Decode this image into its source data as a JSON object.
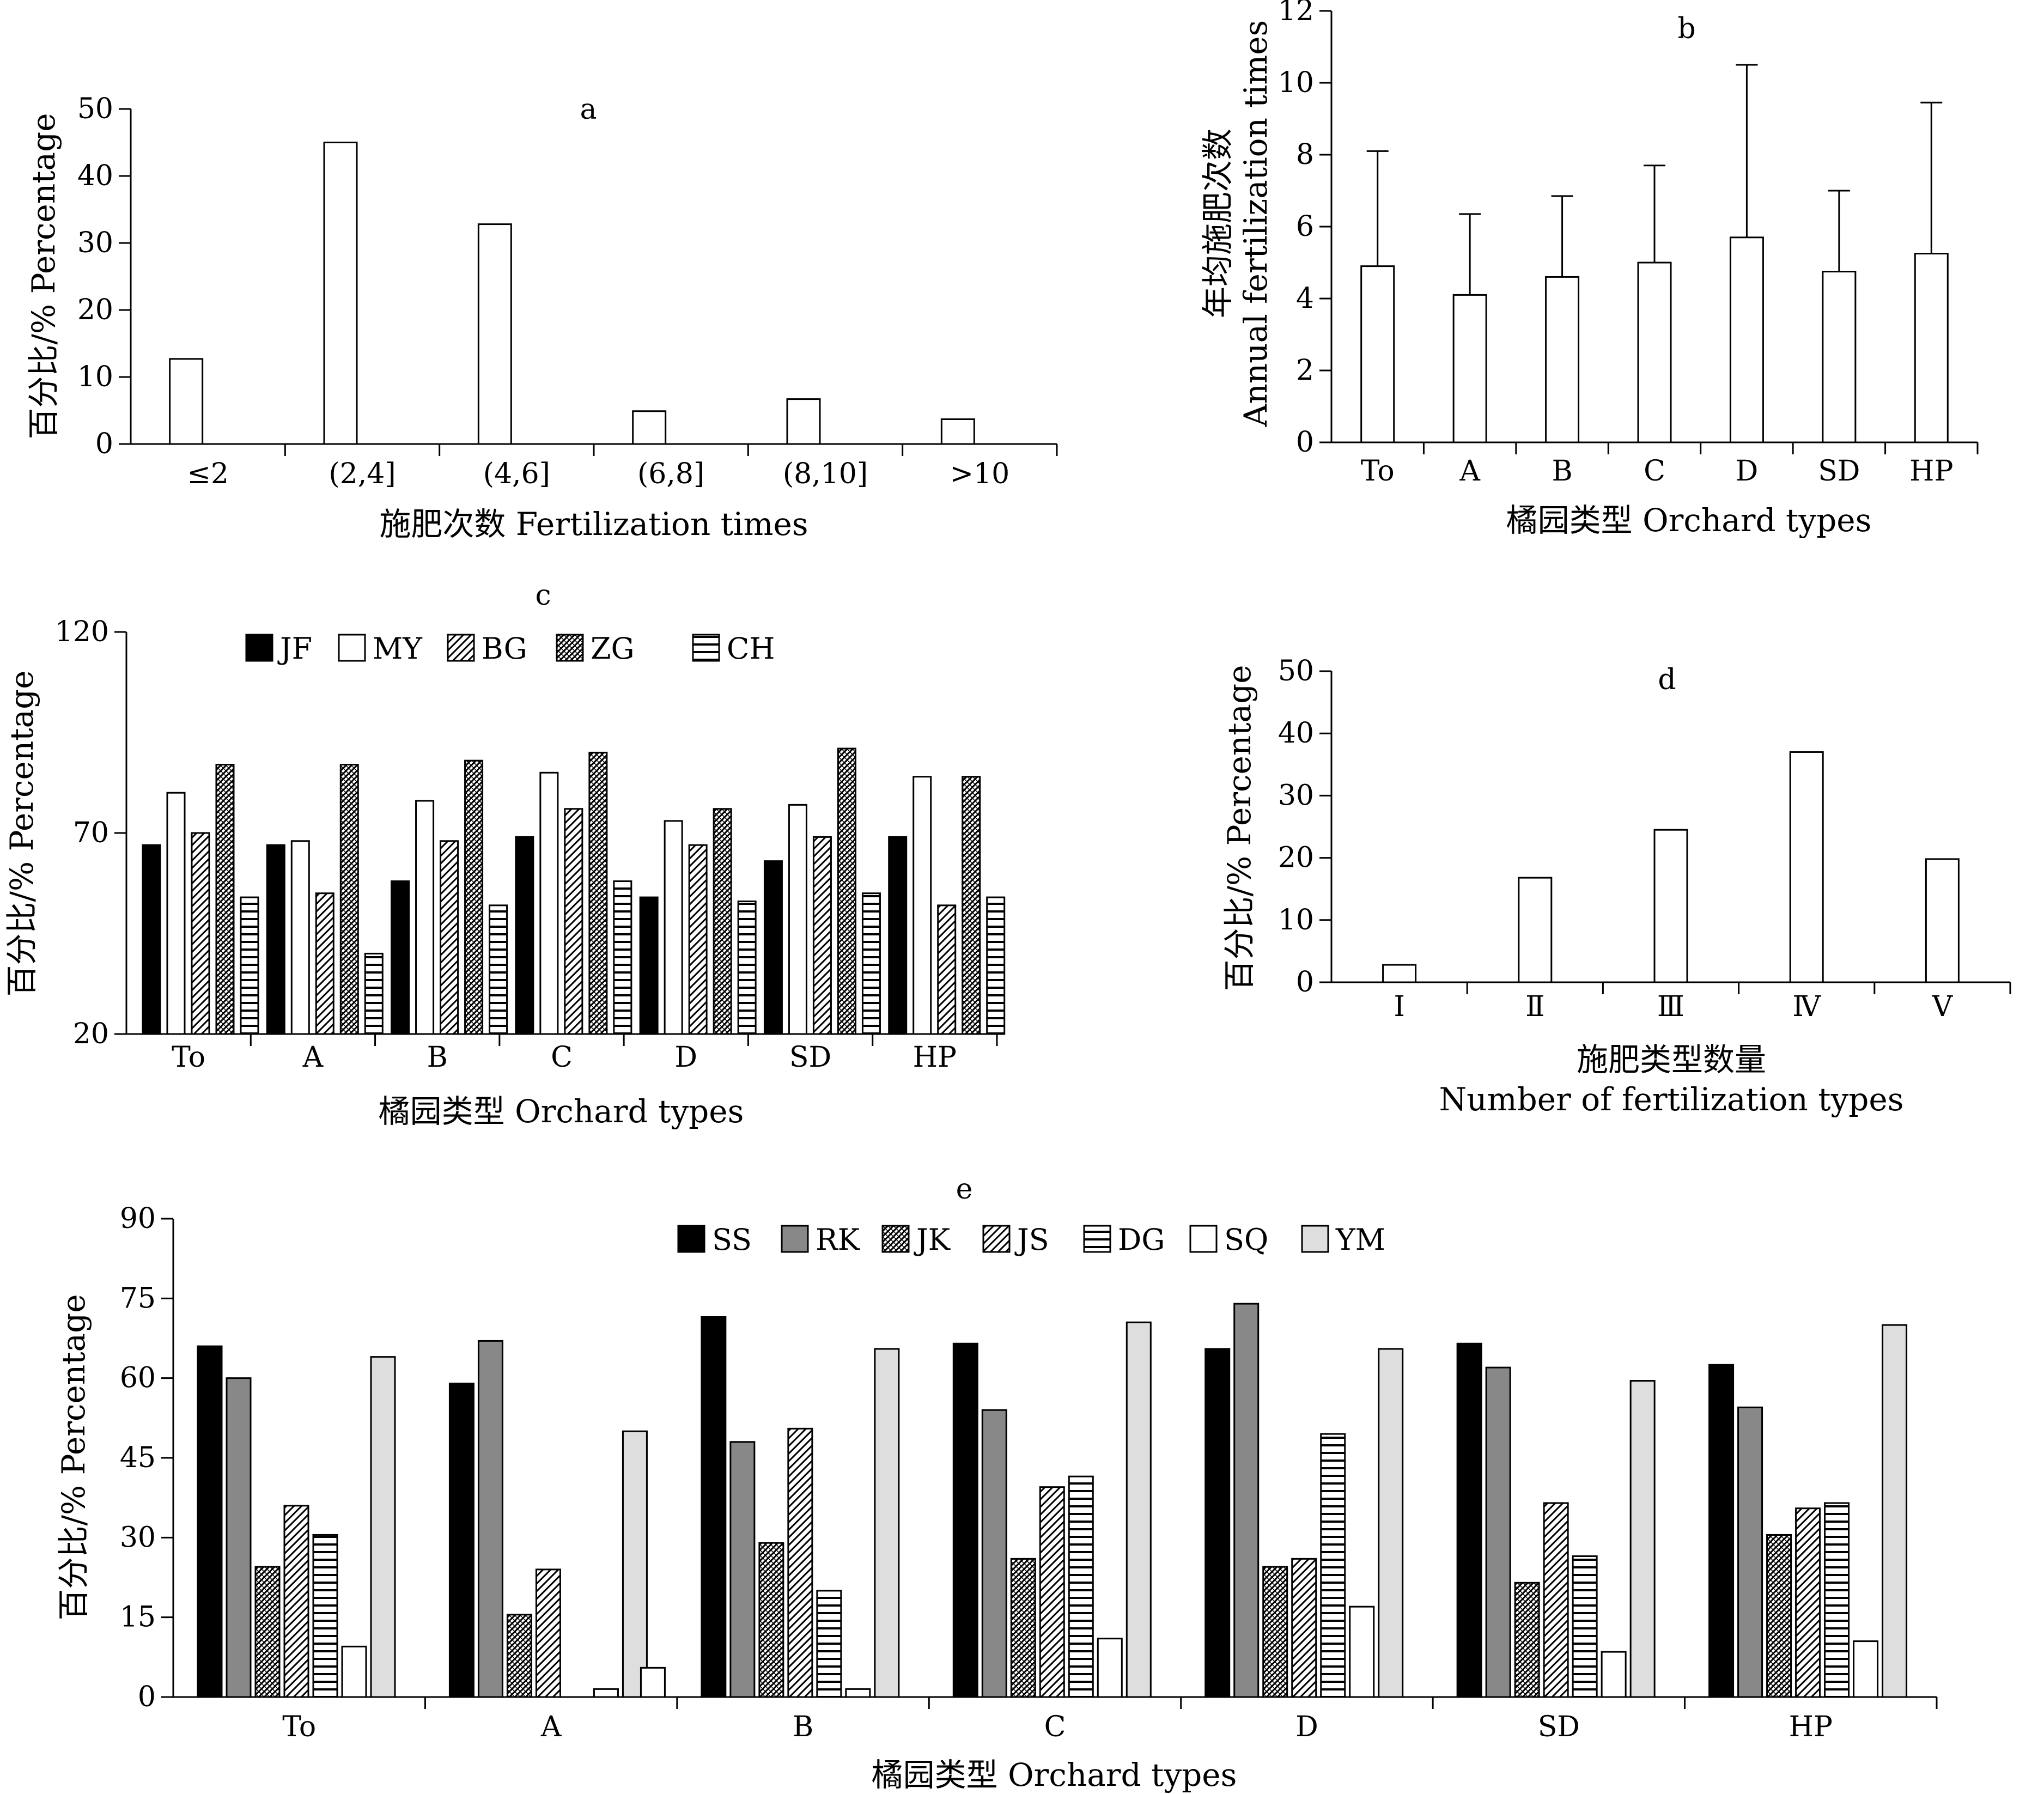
{
  "chart_data": [
    {
      "id": "a",
      "type": "bar",
      "title": "a",
      "categories": [
        "≤2",
        "(2,4]",
        "(4,6]",
        "(6,8]",
        "(8,10]",
        ">10"
      ],
      "values": [
        12.7,
        45,
        32.8,
        4.9,
        6.7,
        3.7
      ],
      "xlabel": "施肥次数  Fertilization times",
      "ylabel": "百分比/%  Percentage",
      "ylim": [
        0,
        50
      ],
      "yticks": [
        0,
        10,
        20,
        30,
        40,
        50
      ]
    },
    {
      "id": "b",
      "type": "bar",
      "title": "b",
      "categories": [
        "To",
        "A",
        "B",
        "C",
        "D",
        "SD",
        "HP"
      ],
      "values": [
        4.9,
        4.1,
        4.6,
        5.0,
        5.7,
        4.75,
        5.25
      ],
      "error_upper": [
        8.1,
        6.35,
        6.85,
        7.7,
        10.5,
        7.0,
        9.45
      ],
      "xlabel": "橘园类型 Orchard types",
      "ylabel": "年均施肥次数",
      "ylabel2": "Annual fertilization times",
      "ylim": [
        0,
        12
      ],
      "yticks": [
        0,
        2,
        4,
        6,
        8,
        10,
        12
      ]
    },
    {
      "id": "c",
      "type": "bar",
      "title": "c",
      "categories": [
        "To",
        "A",
        "B",
        "C",
        "D",
        "SD",
        "HP"
      ],
      "series": [
        {
          "name": "JF",
          "values": [
            67,
            67,
            58,
            69,
            54,
            63,
            69
          ]
        },
        {
          "name": "MY",
          "values": [
            80,
            68,
            78,
            85,
            73,
            77,
            84
          ]
        },
        {
          "name": "BG",
          "values": [
            70,
            55,
            68,
            76,
            67,
            69,
            52
          ]
        },
        {
          "name": "ZG",
          "values": [
            87,
            87,
            88,
            90,
            76,
            91,
            84
          ]
        },
        {
          "name": "CH",
          "values": [
            54,
            40,
            52,
            58,
            53,
            55,
            54
          ]
        }
      ],
      "xlabel": "橘园类型  Orchard types",
      "ylabel": "百分比/%  Percentage",
      "ylim": [
        20,
        120
      ],
      "yticks": [
        20,
        70,
        120
      ]
    },
    {
      "id": "d",
      "type": "bar",
      "title": "d",
      "categories": [
        "Ⅰ",
        "Ⅱ",
        "Ⅲ",
        "Ⅳ",
        "Ⅴ"
      ],
      "values": [
        2.8,
        16.8,
        24.5,
        37,
        19.8
      ],
      "xlabel": "施肥类型数量",
      "xlabel2": "Number of fertilization types",
      "ylabel": "百分比/%  Percentage",
      "ylim": [
        0,
        50
      ],
      "yticks": [
        0,
        10,
        20,
        30,
        40,
        50
      ]
    },
    {
      "id": "e",
      "type": "bar",
      "title": "e",
      "categories": [
        "To",
        "A",
        "B",
        "C",
        "D",
        "SD",
        "HP"
      ],
      "series": [
        {
          "name": "SS",
          "values": [
            66,
            59,
            71.5,
            66.5,
            65.5,
            66.5,
            62.5
          ]
        },
        {
          "name": "RK",
          "values": [
            60,
            67,
            48,
            54,
            74,
            62,
            54.5
          ]
        },
        {
          "name": "JK",
          "values": [
            24.5,
            15.5,
            29,
            26,
            24.5,
            21.5,
            30.5
          ]
        },
        {
          "name": "JS",
          "values": [
            36,
            24,
            50.5,
            39.5,
            26,
            36.5,
            35.5
          ]
        },
        {
          "name": "DG",
          "values": [
            30.5,
            0,
            20,
            41.5,
            49.5,
            26.5,
            36.5
          ]
        },
        {
          "name": "SQ",
          "values": [
            9.5,
            1.5,
            1.5,
            11,
            17,
            8.5,
            10.5
          ]
        },
        {
          "name": "YM",
          "values": [
            64,
            50,
            65.5,
            70.5,
            65.5,
            59.5,
            70
          ]
        }
      ],
      "extra_bars": [
        {
          "category": "A",
          "value": 5.5
        }
      ],
      "xlabel": "橘园类型  Orchard types",
      "ylabel": "百分比/%  Percentage",
      "ylim": [
        0,
        90
      ],
      "yticks": [
        0,
        15,
        30,
        45,
        60,
        75,
        90
      ]
    }
  ]
}
